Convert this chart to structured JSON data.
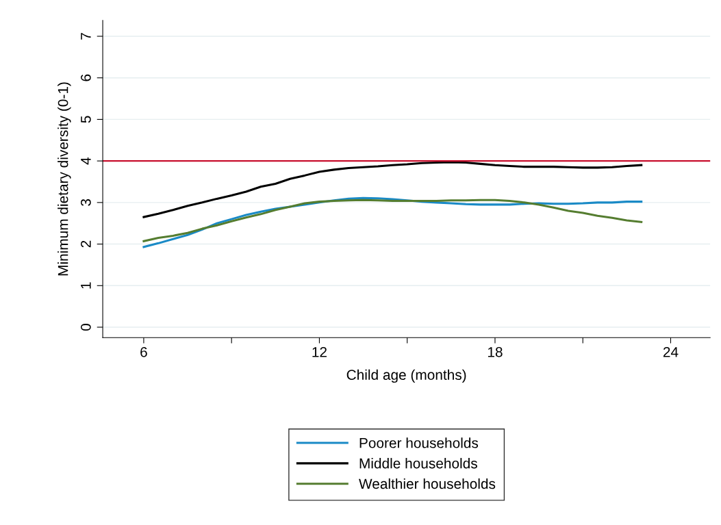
{
  "chart_data": {
    "type": "line",
    "xlabel": "Child age (months)",
    "ylabel": "Minimum dietary diversity (0-1)",
    "x": [
      6,
      6.5,
      7,
      7.5,
      8,
      8.5,
      9,
      9.5,
      10,
      10.5,
      11,
      11.5,
      12,
      12.5,
      13,
      13.5,
      14,
      14.5,
      15,
      15.5,
      16,
      16.5,
      17,
      17.5,
      18,
      18.5,
      19,
      19.5,
      20,
      20.5,
      21,
      21.5,
      22,
      22.5,
      23
    ],
    "series": [
      {
        "name": "Poorer households",
        "color": "#1a8ac6",
        "values": [
          1.93,
          2.02,
          2.12,
          2.22,
          2.35,
          2.5,
          2.6,
          2.7,
          2.78,
          2.85,
          2.9,
          2.95,
          3.0,
          3.05,
          3.09,
          3.11,
          3.1,
          3.08,
          3.05,
          3.02,
          3.0,
          2.98,
          2.96,
          2.95,
          2.95,
          2.95,
          2.97,
          2.98,
          2.97,
          2.97,
          2.98,
          3.0,
          3.0,
          3.02,
          3.02
        ]
      },
      {
        "name": "Middle households",
        "color": "#000000",
        "values": [
          2.65,
          2.73,
          2.82,
          2.92,
          3.0,
          3.09,
          3.17,
          3.26,
          3.38,
          3.45,
          3.57,
          3.65,
          3.74,
          3.79,
          3.83,
          3.85,
          3.87,
          3.9,
          3.92,
          3.95,
          3.96,
          3.97,
          3.96,
          3.93,
          3.9,
          3.88,
          3.86,
          3.86,
          3.86,
          3.85,
          3.84,
          3.84,
          3.85,
          3.88,
          3.9
        ]
      },
      {
        "name": "Wealthier households",
        "color": "#557d30",
        "values": [
          2.07,
          2.15,
          2.2,
          2.27,
          2.37,
          2.45,
          2.55,
          2.64,
          2.72,
          2.82,
          2.9,
          2.98,
          3.02,
          3.04,
          3.05,
          3.06,
          3.05,
          3.04,
          3.04,
          3.04,
          3.04,
          3.05,
          3.05,
          3.06,
          3.06,
          3.04,
          3.0,
          2.95,
          2.88,
          2.8,
          2.75,
          2.68,
          2.63,
          2.57,
          2.53
        ]
      }
    ],
    "xlim": [
      4.6,
      25.35
    ],
    "xticks": [
      6,
      {
        "value": 9,
        "label": null
      },
      12,
      {
        "value": 15,
        "label": null
      },
      18,
      {
        "value": 21,
        "label": null
      },
      24
    ],
    "ylim": [
      -0.25,
      7.38
    ],
    "yticks": [
      0,
      1,
      2,
      3,
      4,
      5,
      6,
      7
    ],
    "ref_lines": [
      {
        "axis": "y",
        "value": 4,
        "color": "#c8102e"
      }
    ],
    "grid": "y",
    "legend": "bottom",
    "marker": "none",
    "line_style": "solid"
  }
}
